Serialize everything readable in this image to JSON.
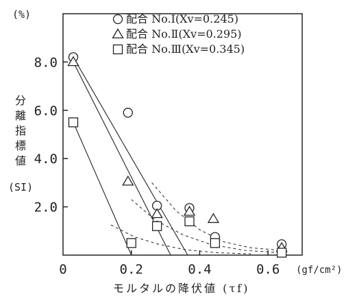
{
  "chart_data": {
    "type": "scatter",
    "y_unit_label": "(%)",
    "x_unit_label": "(gf/cm²)",
    "ylabel_lines": [
      "分",
      "離",
      "指",
      "標",
      "値"
    ],
    "ylabel_symbol": "(SI)",
    "xlabel": "モルタルの降伏値 (τf)",
    "xlim": [
      0,
      0.7
    ],
    "ylim": [
      0,
      10
    ],
    "x_ticks": [
      0,
      0.2,
      0.4,
      0.6
    ],
    "x_tick_labels": [
      "0",
      "0.2",
      "0.4",
      "0.6"
    ],
    "y_ticks": [
      2,
      4,
      6,
      8
    ],
    "y_tick_labels": [
      "2.0",
      "4.0",
      "6.0",
      "8.0"
    ],
    "legend_position": "top-right",
    "series": [
      {
        "name": "配合 No.Ⅰ(Xv=0.245)",
        "marker": "circle",
        "points": [
          [
            0.03,
            8.2
          ],
          [
            0.19,
            5.9
          ],
          [
            0.275,
            2.05
          ],
          [
            0.37,
            1.95
          ],
          [
            0.445,
            0.75
          ],
          [
            0.64,
            0.45
          ]
        ],
        "line_solid": [
          [
            0.03,
            8.2
          ],
          [
            0.365,
            0
          ]
        ],
        "line_dashed": [
          [
            0.26,
            3.0
          ],
          [
            0.33,
            1.85
          ],
          [
            0.4,
            1.05
          ],
          [
            0.47,
            0.55
          ],
          [
            0.55,
            0.3
          ],
          [
            0.64,
            0.2
          ]
        ]
      },
      {
        "name": "配合 No.Ⅱ(Xv=0.295)",
        "marker": "triangle",
        "points": [
          [
            0.03,
            8.0
          ],
          [
            0.19,
            3.05
          ],
          [
            0.275,
            1.7
          ],
          [
            0.37,
            1.8
          ],
          [
            0.44,
            1.5
          ],
          [
            0.64,
            0.3
          ]
        ],
        "line_solid": [
          [
            0.03,
            8.0
          ],
          [
            0.315,
            0
          ]
        ],
        "line_dashed": [
          [
            0.2,
            2.3
          ],
          [
            0.27,
            1.45
          ],
          [
            0.35,
            0.85
          ],
          [
            0.43,
            0.45
          ],
          [
            0.53,
            0.2
          ],
          [
            0.64,
            0.1
          ]
        ]
      },
      {
        "name": "配合 No.Ⅲ(Xv=0.345)",
        "marker": "square",
        "points": [
          [
            0.03,
            5.5
          ],
          [
            0.2,
            0.5
          ],
          [
            0.275,
            1.2
          ],
          [
            0.37,
            1.4
          ],
          [
            0.445,
            0.5
          ],
          [
            0.64,
            0.1
          ]
        ],
        "line_solid": [
          [
            0.03,
            5.5
          ],
          [
            0.2,
            0
          ]
        ],
        "line_dashed": [
          [
            0.14,
            1.25
          ],
          [
            0.21,
            0.75
          ],
          [
            0.28,
            0.45
          ],
          [
            0.36,
            0.22
          ],
          [
            0.45,
            0.1
          ],
          [
            0.55,
            0.05
          ]
        ]
      }
    ]
  }
}
